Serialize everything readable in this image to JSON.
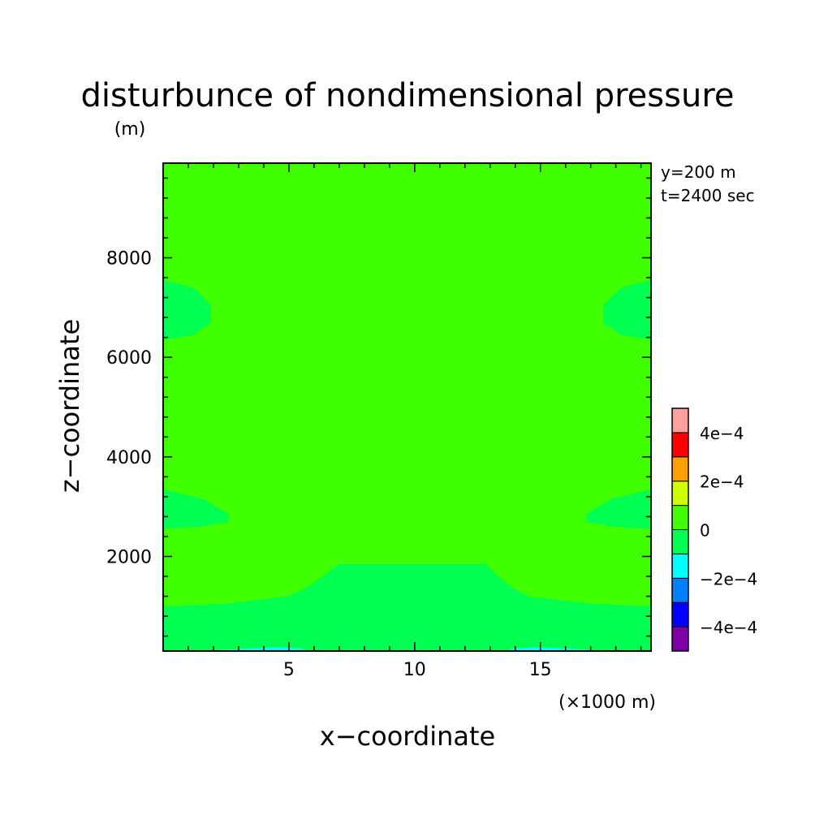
{
  "chart_data": {
    "type": "heatmap",
    "title": "disturbunce of nondimensional pressure",
    "ylabel_unit": "(m)",
    "xlabel": "x−coordinate",
    "ylabel": "z−coordinate",
    "xunit": "(×1000 m)",
    "info": [
      "y=200 m",
      "t=2400 sec"
    ],
    "xlim": [
      0,
      19.4
    ],
    "ylim": [
      100,
      9900
    ],
    "xticks": [
      5,
      10,
      15
    ],
    "xtick_labels": [
      "5",
      "10",
      "15"
    ],
    "yticks": [
      2000,
      4000,
      6000,
      8000
    ],
    "ytick_labels": [
      "2000",
      "4000",
      "6000",
      "8000"
    ],
    "colorbar": {
      "levels": [
        {
          "range": [
            -0.0005,
            -0.0004
          ],
          "color": "#7b00a8"
        },
        {
          "range": [
            -0.0004,
            -0.0003
          ],
          "color": "#0000ff"
        },
        {
          "range": [
            -0.0003,
            -0.0002
          ],
          "color": "#0080ff"
        },
        {
          "range": [
            -0.0002,
            -0.0001
          ],
          "color": "#00ffff"
        },
        {
          "range": [
            -0.0001,
            0
          ],
          "color": "#00ff50"
        },
        {
          "range": [
            0,
            0.0001
          ],
          "color": "#40ff00"
        },
        {
          "range": [
            0.0001,
            0.0002
          ],
          "color": "#d0ff00"
        },
        {
          "range": [
            0.0002,
            0.0003
          ],
          "color": "#ffa000"
        },
        {
          "range": [
            0.0003,
            0.0004
          ],
          "color": "#ff0000"
        },
        {
          "range": [
            0.0004,
            0.0005
          ],
          "color": "#ffa0a0"
        }
      ],
      "labels": [
        "−4e−4",
        "−2e−4",
        "0",
        "2e−4",
        "4e−4"
      ],
      "label_values": [
        -0.0004,
        -0.0002,
        0,
        0.0002,
        0.0004
      ]
    },
    "background_color": "#40ff00",
    "regions": [
      {
        "name": "band-bottom",
        "level": "-1e-4..0",
        "color": "#00ff50",
        "points": [
          [
            0,
            100
          ],
          [
            19.4,
            100
          ],
          [
            19.4,
            1000
          ],
          [
            17,
            1050
          ],
          [
            14.5,
            1200
          ],
          [
            13.8,
            1400
          ],
          [
            12.8,
            1850
          ],
          [
            7,
            1850
          ],
          [
            5.8,
            1400
          ],
          [
            5,
            1200
          ],
          [
            2.5,
            1050
          ],
          [
            0,
            1000
          ]
        ]
      },
      {
        "name": "patch-left-upper",
        "level": "-1e-4..0",
        "color": "#00ff50",
        "points": [
          [
            0,
            6350
          ],
          [
            1.2,
            6450
          ],
          [
            1.9,
            6700
          ],
          [
            1.9,
            7050
          ],
          [
            1.2,
            7400
          ],
          [
            0,
            7550
          ]
        ]
      },
      {
        "name": "patch-right-upper",
        "level": "-1e-4..0",
        "color": "#00ff50",
        "points": [
          [
            19.4,
            6350
          ],
          [
            18.2,
            6450
          ],
          [
            17.5,
            6700
          ],
          [
            17.5,
            7050
          ],
          [
            18.2,
            7400
          ],
          [
            19.4,
            7550
          ]
        ]
      },
      {
        "name": "patch-left-lower",
        "level": "-1e-4..0",
        "color": "#00ff50",
        "points": [
          [
            0,
            2550
          ],
          [
            1.5,
            2600
          ],
          [
            2.6,
            2700
          ],
          [
            2.6,
            2850
          ],
          [
            1.6,
            3150
          ],
          [
            0,
            3350
          ]
        ]
      },
      {
        "name": "patch-right-lower",
        "level": "-1e-4..0",
        "color": "#00ff50",
        "points": [
          [
            19.4,
            2550
          ],
          [
            17.9,
            2600
          ],
          [
            16.8,
            2700
          ],
          [
            16.8,
            2850
          ],
          [
            17.8,
            3150
          ],
          [
            19.4,
            3350
          ]
        ]
      },
      {
        "name": "sliver-left",
        "level": "-2e-4..-1e-4",
        "color": "#00ffff",
        "points": [
          [
            1.5,
            100
          ],
          [
            5.8,
            100
          ],
          [
            5.5,
            150
          ],
          [
            4.5,
            180
          ],
          [
            3,
            140
          ]
        ]
      },
      {
        "name": "sliver-right",
        "level": "-2e-4..-1e-4",
        "color": "#00ffff",
        "points": [
          [
            13.6,
            100
          ],
          [
            17.9,
            100
          ],
          [
            16.4,
            140
          ],
          [
            14.9,
            180
          ],
          [
            13.9,
            150
          ]
        ]
      }
    ]
  }
}
